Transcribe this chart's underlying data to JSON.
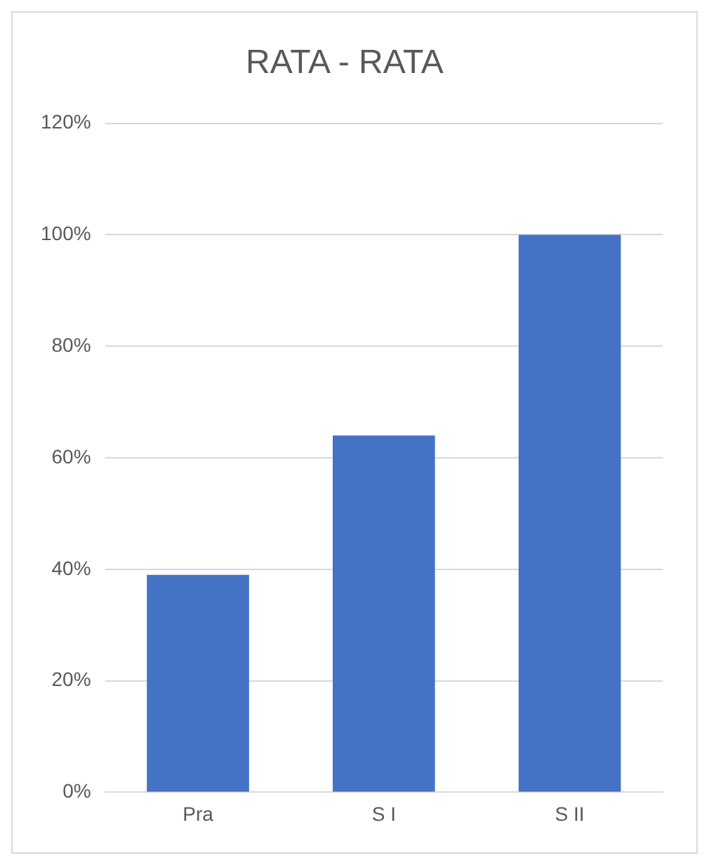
{
  "chart_data": {
    "type": "bar",
    "title": "RATA - RATA",
    "categories": [
      "Pra",
      "S I",
      "S II"
    ],
    "values": [
      39,
      64,
      100
    ],
    "color": "#4472c4",
    "ylim": [
      0,
      120
    ],
    "yticks": [
      {
        "value": 0,
        "label": "0%"
      },
      {
        "value": 20,
        "label": "20%"
      },
      {
        "value": 40,
        "label": "40%"
      },
      {
        "value": 60,
        "label": "60%"
      },
      {
        "value": 80,
        "label": "80%"
      },
      {
        "value": 100,
        "label": "100%"
      },
      {
        "value": 120,
        "label": "120%"
      }
    ],
    "grid": "y",
    "legend": false
  }
}
